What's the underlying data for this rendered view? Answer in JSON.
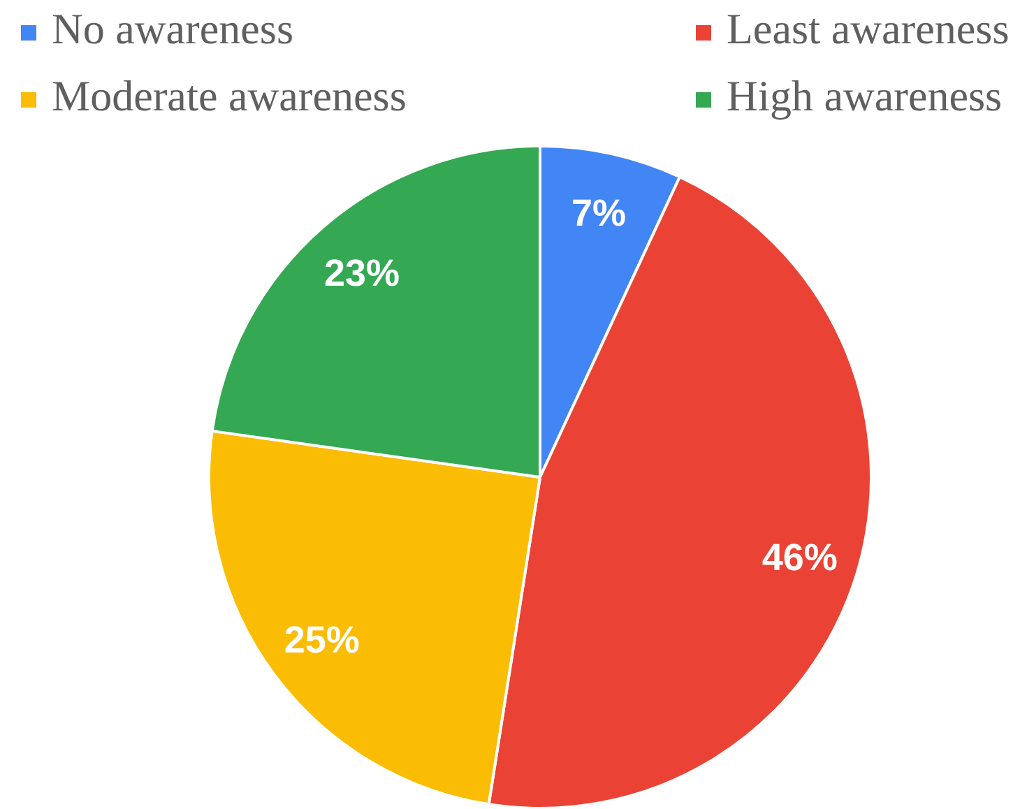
{
  "chart_data": {
    "type": "pie",
    "categories": [
      "No awareness",
      "Least awareness",
      "Moderate awareness",
      "High awareness"
    ],
    "values": [
      7,
      46,
      25,
      23
    ],
    "colors": [
      "#4285f4",
      "#ea4335",
      "#fbbc04",
      "#34a853"
    ],
    "value_labels": [
      "7%",
      "46%",
      "25%",
      "23%"
    ],
    "legend": "top"
  }
}
